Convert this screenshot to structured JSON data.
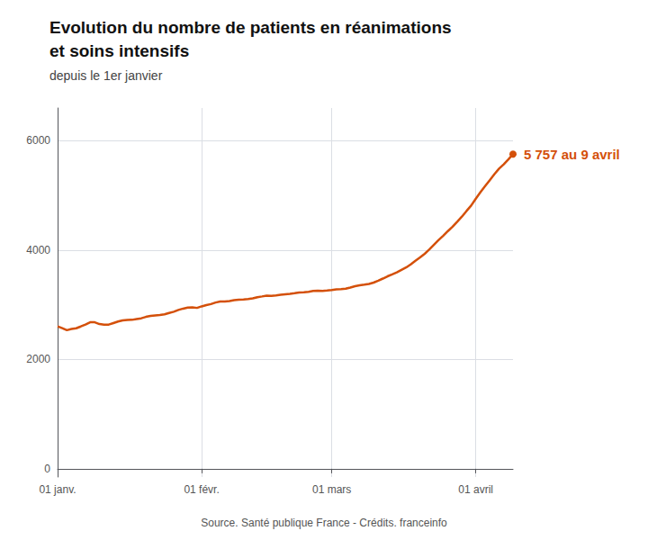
{
  "chart_data": {
    "type": "line",
    "title": "Evolution du nombre de patients en réanimations\net soins intensifs",
    "subtitle": "depuis le 1er janvier",
    "source": "Source. Santé publique France - Crédits. franceinfo",
    "annotation": "5 757 au 9 avril",
    "color": "#d4500a",
    "grid": true,
    "ylim": [
      -150,
      6600
    ],
    "yticks": [
      0,
      2000,
      4000,
      6000
    ],
    "categories": [
      "01 janv.",
      null,
      null,
      null,
      null,
      null,
      null,
      null,
      null,
      null,
      null,
      null,
      null,
      null,
      null,
      null,
      null,
      null,
      null,
      null,
      null,
      null,
      null,
      null,
      null,
      null,
      null,
      null,
      null,
      null,
      null,
      "01 févr.",
      null,
      null,
      null,
      null,
      null,
      null,
      null,
      null,
      null,
      null,
      null,
      null,
      null,
      null,
      null,
      null,
      null,
      null,
      null,
      null,
      null,
      null,
      null,
      null,
      null,
      null,
      null,
      "01 mars",
      null,
      null,
      null,
      null,
      null,
      null,
      null,
      null,
      null,
      null,
      null,
      null,
      null,
      null,
      null,
      null,
      null,
      null,
      null,
      null,
      null,
      null,
      null,
      null,
      null,
      null,
      null,
      null,
      null,
      null,
      "01 avril",
      null,
      null,
      null,
      null,
      null,
      null,
      null,
      null
    ],
    "values": [
      2607,
      2572,
      2536,
      2558,
      2571,
      2604,
      2640,
      2681,
      2680,
      2648,
      2637,
      2638,
      2666,
      2693,
      2714,
      2724,
      2725,
      2740,
      2753,
      2779,
      2797,
      2807,
      2814,
      2826,
      2851,
      2873,
      2906,
      2930,
      2950,
      2953,
      2943,
      2971,
      2994,
      3013,
      3042,
      3060,
      3060,
      3070,
      3086,
      3094,
      3099,
      3105,
      3117,
      3139,
      3153,
      3169,
      3163,
      3171,
      3183,
      3193,
      3200,
      3211,
      3224,
      3230,
      3239,
      3252,
      3258,
      3255,
      3262,
      3271,
      3282,
      3286,
      3295,
      3316,
      3340,
      3355,
      3368,
      3382,
      3406,
      3441,
      3480,
      3521,
      3557,
      3594,
      3640,
      3683,
      3740,
      3806,
      3867,
      3933,
      4012,
      4099,
      4185,
      4265,
      4349,
      4429,
      4520,
      4613,
      4716,
      4815,
      4942,
      5060,
      5170,
      5280,
      5390,
      5490,
      5570,
      5660,
      5757
    ]
  }
}
